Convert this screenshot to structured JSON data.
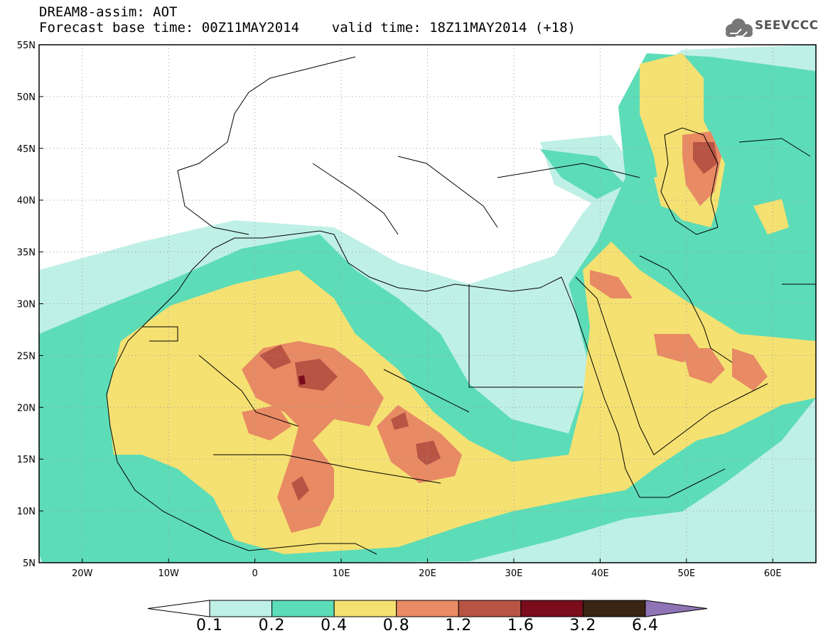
{
  "title": {
    "line1": "DREAM8-assim: AOT",
    "line2": "Forecast base time: 00Z11MAY2014    valid time: 18Z11MAY2014 (+18)"
  },
  "logo": {
    "text": "SEEVCCC",
    "icon": "cloud-icon"
  },
  "map": {
    "lat_range": [
      5,
      55
    ],
    "lon_range": [
      -25,
      65
    ],
    "lat_ticks": [
      "5N",
      "10N",
      "15N",
      "20N",
      "25N",
      "30N",
      "35N",
      "40N",
      "45N",
      "50N",
      "55N"
    ],
    "lon_ticks": [
      "20W",
      "10W",
      "0",
      "10E",
      "20E",
      "30E",
      "40E",
      "50E",
      "60E"
    ],
    "grid": "dotted"
  },
  "colorbar": {
    "labels": [
      "0.1",
      "0.2",
      "0.4",
      "0.8",
      "1.2",
      "1.6",
      "3.2",
      "6.4"
    ],
    "colors": [
      "#ffffff",
      "#bff0e6",
      "#5ddcb8",
      "#f5e172",
      "#e88a64",
      "#b85444",
      "#7a0c1c",
      "#3a2414",
      "#8e74b4"
    ]
  }
}
